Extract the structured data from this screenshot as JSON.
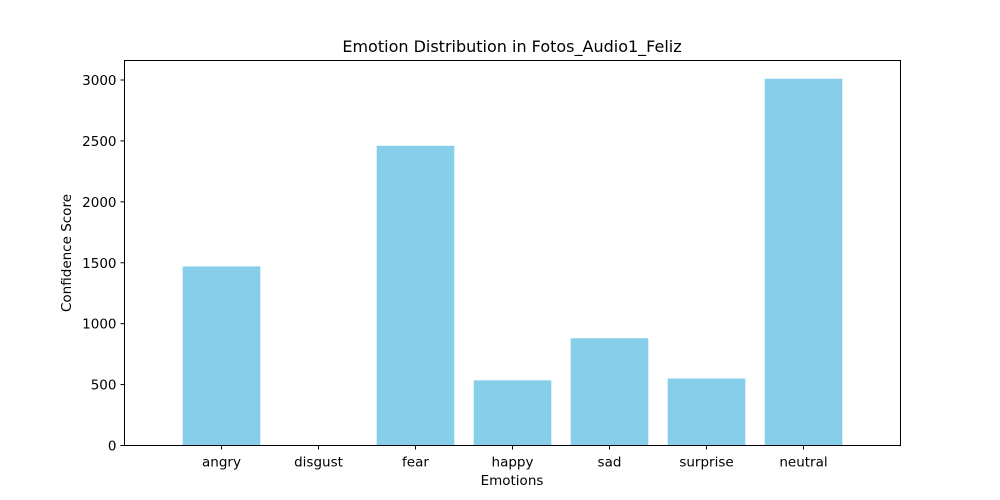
{
  "chart_data": {
    "type": "bar",
    "title": "Emotion Distribution in Fotos_Audio1_Feliz",
    "xlabel": "Emotions",
    "ylabel": "Confidence Score",
    "categories": [
      "angry",
      "disgust",
      "fear",
      "happy",
      "sad",
      "surprise",
      "neutral"
    ],
    "values": [
      1470,
      0,
      2460,
      535,
      880,
      550,
      3010
    ],
    "ylim": [
      0,
      3160
    ],
    "yticks": [
      0,
      500,
      1000,
      1500,
      2000,
      2500,
      3000
    ],
    "ytick_labels": [
      "0",
      "500",
      "1000",
      "1500",
      "2000",
      "2500",
      "3000"
    ],
    "bar_color": "#87ceeb",
    "grid": false,
    "legend": "none"
  }
}
